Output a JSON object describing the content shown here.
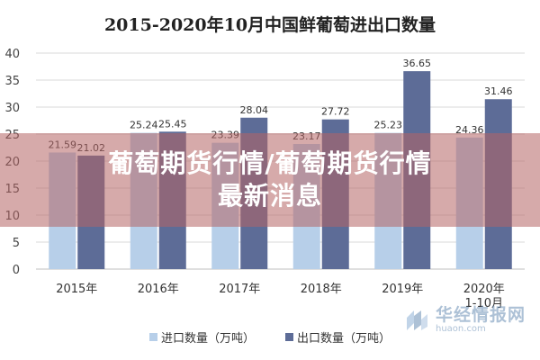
{
  "chart_data": {
    "type": "bar",
    "title": "2015-2020年10月中国鲜葡萄进出口数量",
    "categories": [
      "2015年",
      "2016年",
      "2017年",
      "2018年",
      "2019年",
      "2020年\n1-10月"
    ],
    "series": [
      {
        "name": "进口数量（万吨）",
        "values": [
          21.59,
          25.24,
          23.39,
          23.17,
          25.23,
          24.36
        ],
        "color": "#b7cfe9"
      },
      {
        "name": "出口数量（万吨）",
        "values": [
          21.02,
          25.45,
          28.04,
          27.72,
          36.65,
          31.46
        ],
        "color": "#5d6c97"
      }
    ],
    "yticks": [
      0,
      5,
      10,
      15,
      20,
      25,
      30,
      35,
      40
    ],
    "ylim": [
      0,
      40
    ],
    "grid": true,
    "legend": "bottom-center"
  },
  "overlay": {
    "text": "葡萄期货行情/葡萄期货行情最新消息"
  },
  "watermark": {
    "brand": "华经情报网",
    "domain": "huaon.com"
  },
  "legend": {
    "import_label": "进口数量（万吨）",
    "export_label": "出口数量（万吨）"
  }
}
